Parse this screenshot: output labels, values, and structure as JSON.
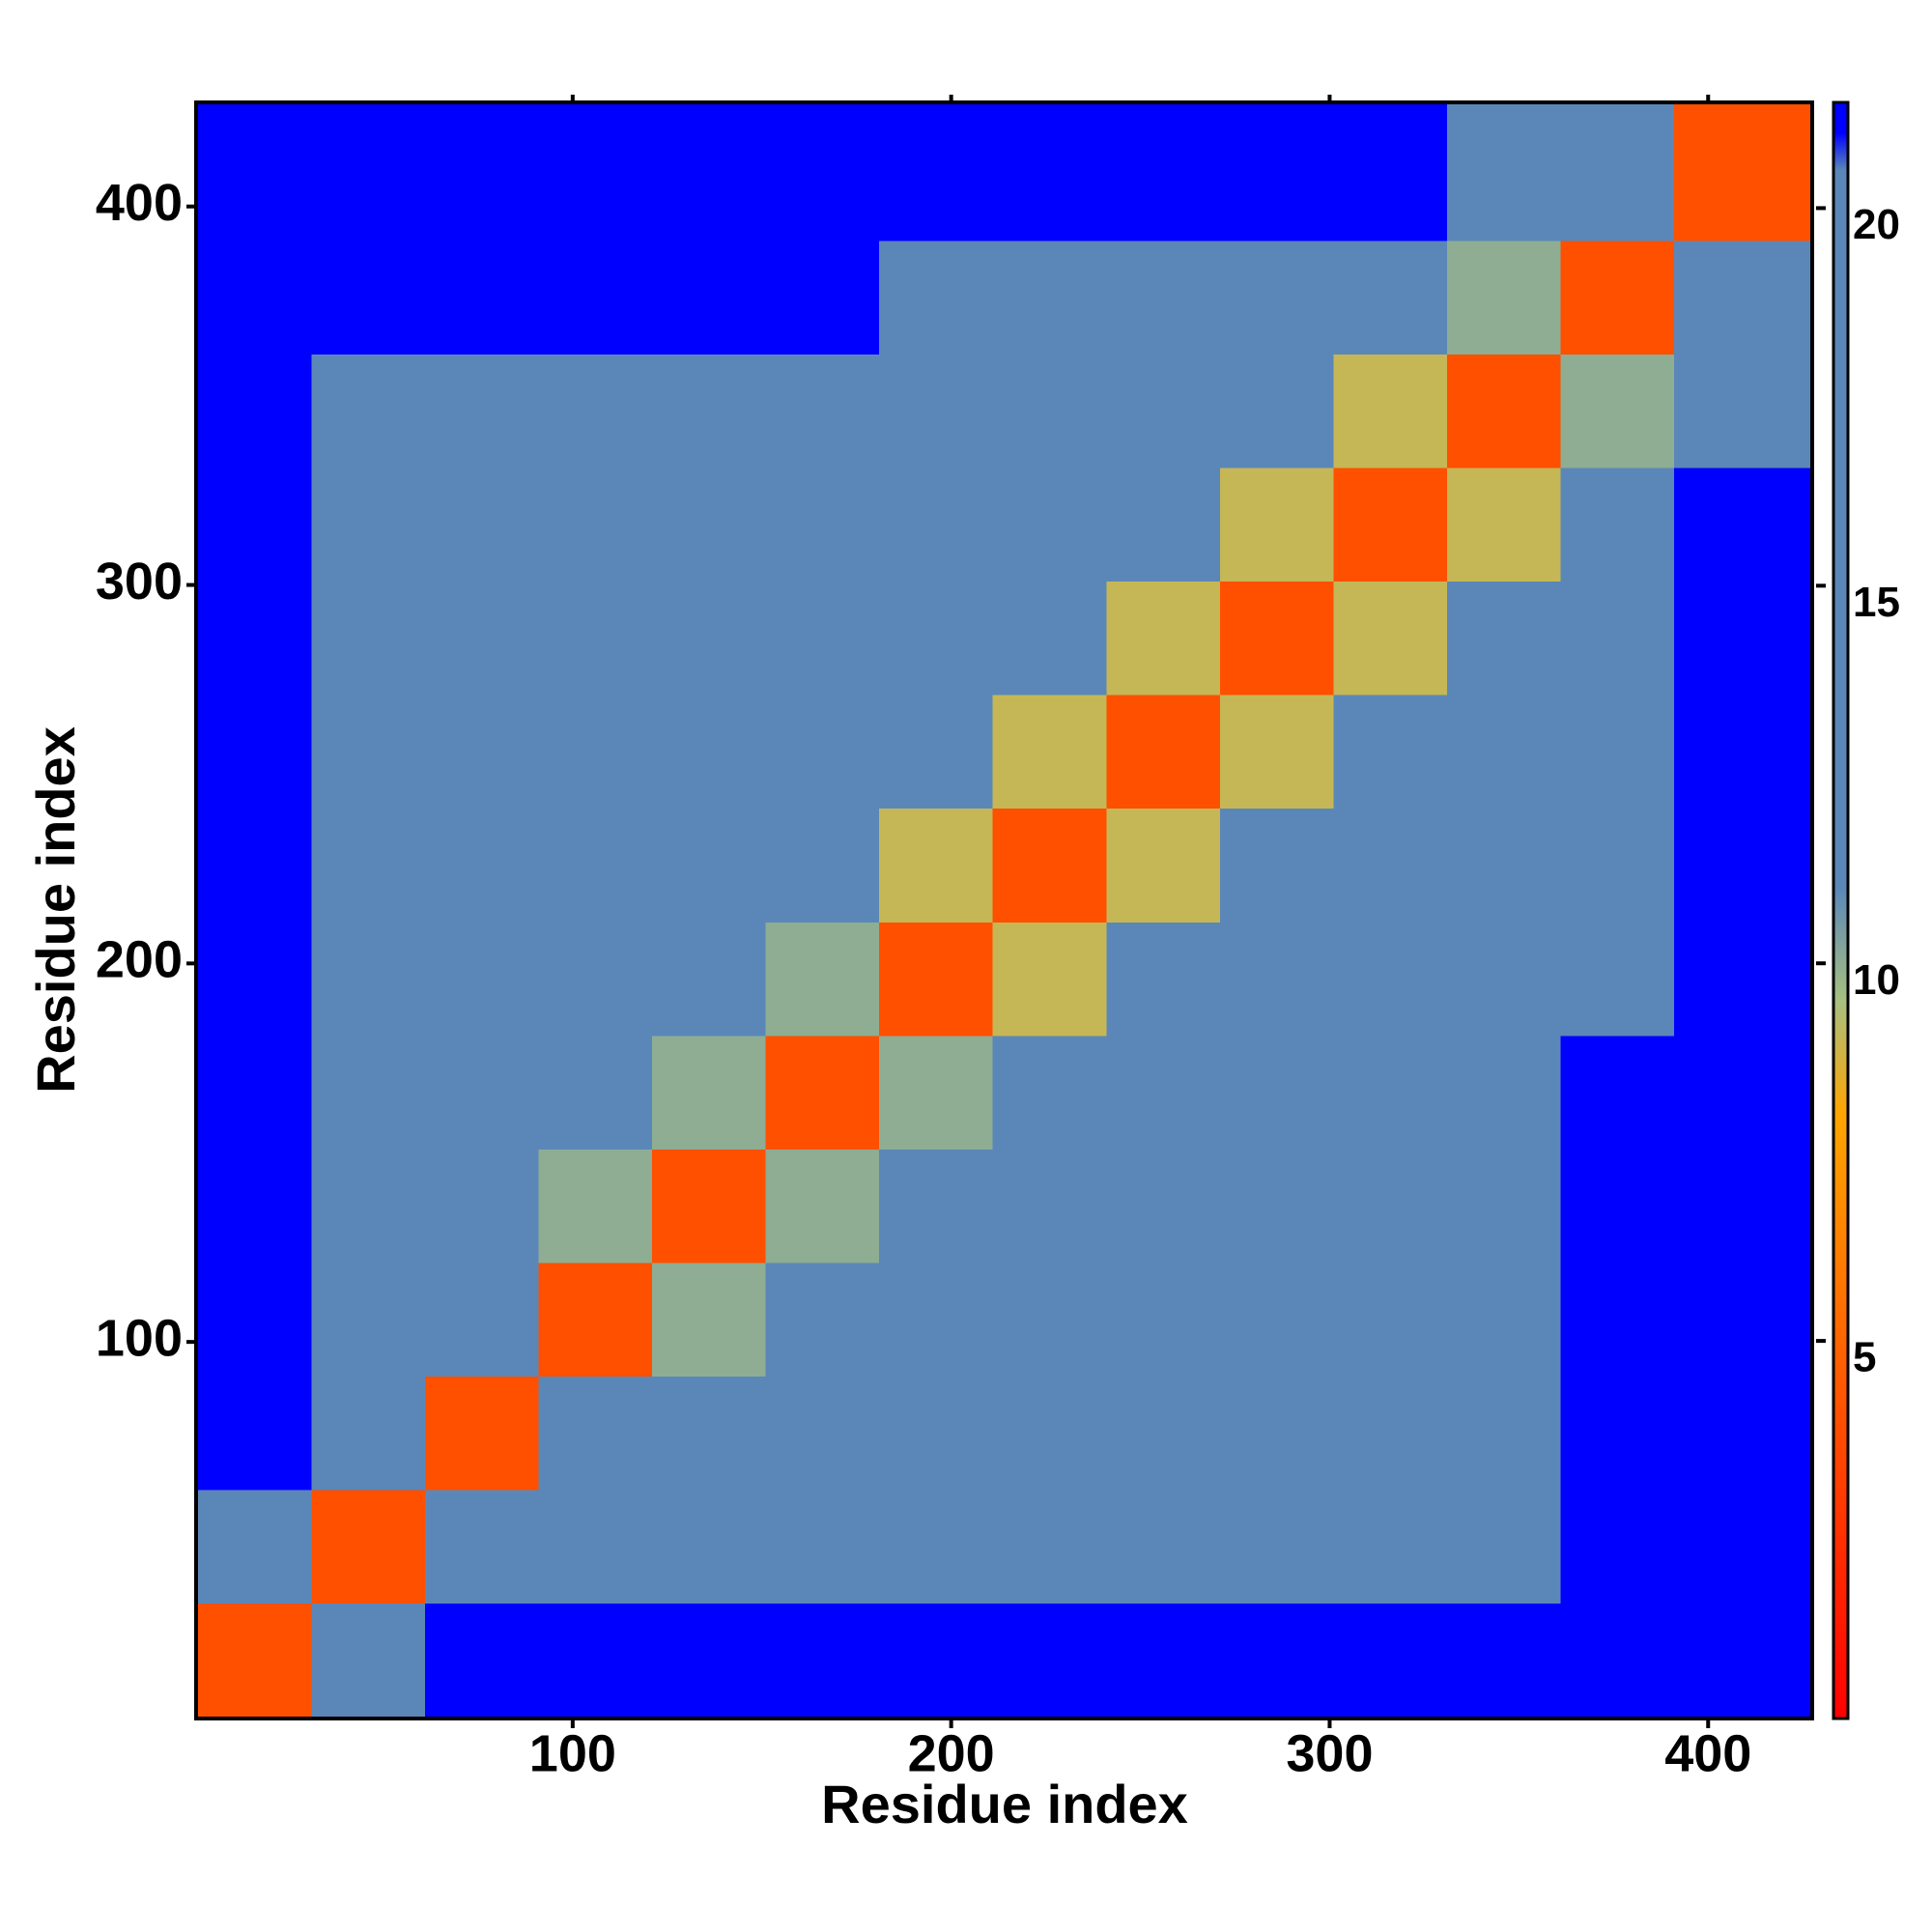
{
  "chart_data": {
    "type": "heatmap",
    "x_label": "Residue index",
    "y_label": "Residue index",
    "x_edges": [
      1,
      31,
      61,
      91,
      121,
      151,
      181,
      211,
      241,
      271,
      301,
      331,
      361,
      391,
      427
    ],
    "y_edges": [
      1,
      31,
      61,
      91,
      121,
      151,
      181,
      211,
      241,
      271,
      301,
      331,
      361,
      391,
      427
    ],
    "z": [
      [
        4,
        15,
        21,
        21,
        21,
        21,
        21,
        21,
        21,
        21,
        21,
        21,
        21,
        21
      ],
      [
        15,
        4,
        13,
        16,
        18,
        19,
        19,
        19,
        18,
        18,
        18,
        17,
        21,
        21
      ],
      [
        21,
        13,
        4,
        11,
        13,
        14,
        16,
        17,
        17,
        17,
        17,
        17,
        21,
        21
      ],
      [
        21,
        16,
        11,
        4,
        10,
        12,
        15,
        16,
        17,
        17,
        17,
        17,
        21,
        21
      ],
      [
        21,
        18,
        13,
        10,
        4,
        10,
        13,
        16,
        16,
        17,
        17,
        17,
        21,
        21
      ],
      [
        21,
        19,
        14,
        12,
        10,
        4,
        10,
        15,
        16,
        17,
        17,
        17,
        21,
        21
      ],
      [
        21,
        19,
        16,
        15,
        13,
        10,
        4,
        9,
        12,
        14,
        14,
        14,
        20,
        21
      ],
      [
        21,
        19,
        17,
        16,
        16,
        15,
        9,
        4,
        9,
        12,
        13,
        14,
        19,
        21
      ],
      [
        21,
        18,
        17,
        17,
        16,
        16,
        12,
        9,
        4,
        9,
        12,
        14,
        17,
        21
      ],
      [
        21,
        18,
        17,
        17,
        17,
        17,
        14,
        12,
        9,
        4,
        9,
        13,
        16,
        21
      ],
      [
        21,
        18,
        17,
        17,
        17,
        17,
        14,
        13,
        12,
        9,
        4,
        9,
        13,
        21
      ],
      [
        21,
        17,
        17,
        17,
        17,
        17,
        14,
        14,
        14,
        13,
        9,
        4,
        10,
        20
      ],
      [
        21,
        21,
        21,
        21,
        21,
        21,
        20,
        19,
        17,
        16,
        13,
        10,
        4,
        12
      ],
      [
        21,
        21,
        21,
        21,
        21,
        21,
        21,
        21,
        21,
        21,
        21,
        20,
        12,
        4
      ]
    ],
    "xlim": [
      0.5,
      427.5
    ],
    "ylim": [
      0.5,
      427.5
    ],
    "xticks": [
      100,
      200,
      300,
      400
    ],
    "yticks": [
      100,
      200,
      300,
      400
    ],
    "clim": [
      0,
      21.4
    ],
    "cticks": [
      5,
      10,
      15,
      20
    ],
    "colorscale": [
      [
        0,
        "#ff0000"
      ],
      [
        4,
        "#ff5000"
      ],
      [
        8,
        "#ffa500"
      ],
      [
        9.5,
        "#a8c080"
      ],
      [
        11,
        "#5b87b8"
      ],
      [
        20.5,
        "#5b87b8"
      ],
      [
        21,
        "#0000ff"
      ]
    ]
  }
}
